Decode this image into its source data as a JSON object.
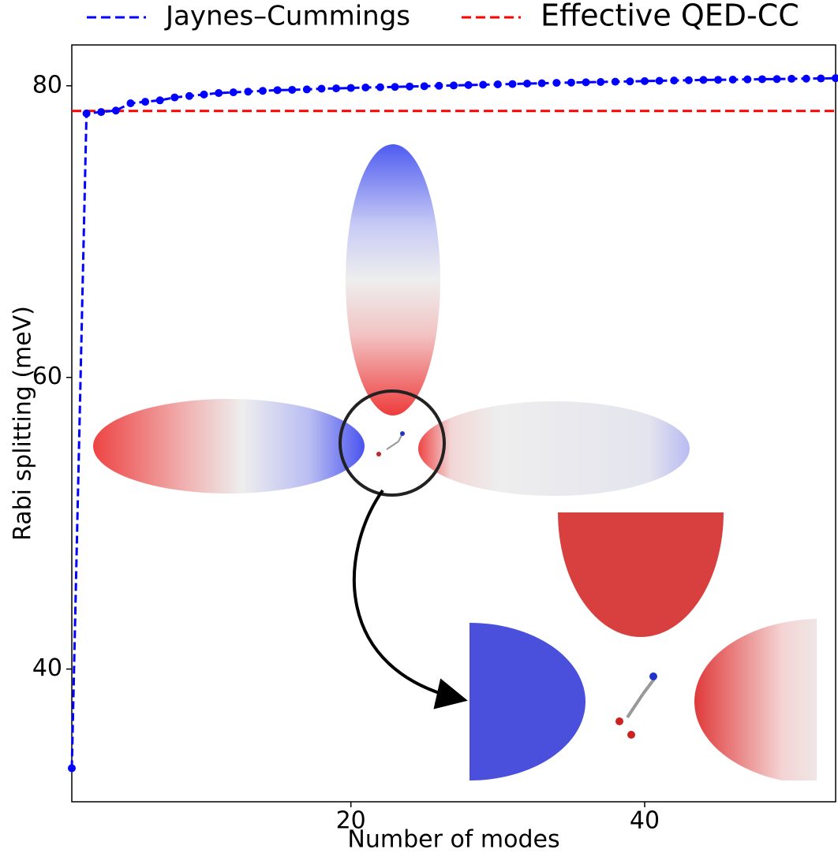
{
  "chart_data": {
    "type": "line",
    "x": [
      1,
      2,
      3,
      4,
      5,
      6,
      7,
      8,
      9,
      10,
      11,
      12,
      13,
      14,
      15,
      16,
      17,
      18,
      19,
      20,
      21,
      22,
      23,
      24,
      25,
      26,
      27,
      28,
      29,
      30,
      31,
      32,
      33,
      34,
      35,
      36,
      37,
      38,
      39,
      40,
      41,
      42,
      43,
      44,
      45,
      46,
      47,
      48,
      49,
      50,
      51,
      52,
      53
    ],
    "series": [
      {
        "name": "Jaynes–Cummings",
        "color": "#0000ff",
        "values": [
          33.2,
          78.1,
          78.2,
          78.3,
          78.8,
          78.9,
          79.0,
          79.2,
          79.3,
          79.4,
          79.5,
          79.55,
          79.6,
          79.65,
          79.7,
          79.72,
          79.75,
          79.8,
          79.82,
          79.85,
          79.88,
          79.9,
          79.92,
          79.95,
          79.97,
          80.0,
          80.02,
          80.05,
          80.07,
          80.1,
          80.12,
          80.15,
          80.17,
          80.2,
          80.22,
          80.24,
          80.26,
          80.28,
          80.3,
          80.32,
          80.34,
          80.36,
          80.38,
          80.4,
          80.41,
          80.42,
          80.44,
          80.45,
          80.46,
          80.48,
          80.49,
          80.5,
          80.52
        ]
      }
    ],
    "reference_lines": [
      {
        "name": "Effective QED-CC",
        "color": "#ff0000",
        "value": 78.27
      }
    ],
    "xlabel": "Number of modes",
    "ylabel": "Rabi splitting (meV)",
    "xlim": [
      1,
      53
    ],
    "ylim": [
      30.9,
      82.8
    ],
    "xticks": [
      20,
      40
    ],
    "yticks": [
      40,
      60,
      80
    ]
  }
}
